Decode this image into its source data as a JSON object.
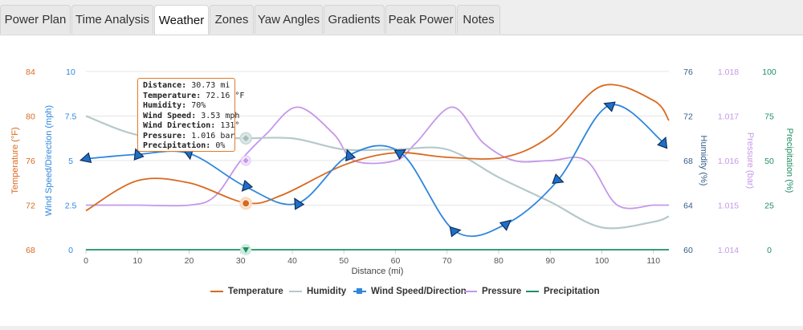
{
  "tabs": [
    {
      "label": "Power Plan"
    },
    {
      "label": "Time Analysis"
    },
    {
      "label": "Weather",
      "active": true
    },
    {
      "label": "Zones"
    },
    {
      "label": "Yaw Angles"
    },
    {
      "label": "Gradients"
    },
    {
      "label": "Peak Power"
    },
    {
      "label": "Notes"
    }
  ],
  "tooltip": {
    "lines": [
      {
        "key": "Distance:",
        "value": "30.73 mi"
      },
      {
        "key": "Temperature:",
        "value": "72.16 °F"
      },
      {
        "key": "Humidity:",
        "value": "70%"
      },
      {
        "key": "Wind Speed:",
        "value": "3.53 mph"
      },
      {
        "key": "Wind Direction:",
        "value": "131°"
      },
      {
        "key": "Pressure:",
        "value": "1.016 bar"
      },
      {
        "key": "Precipitation:",
        "value": "0%"
      }
    ]
  },
  "chart_data": {
    "type": "line",
    "xlabel": "Distance (mi)",
    "xlim": [
      0,
      113
    ],
    "x_ticks": [
      "0",
      "10",
      "20",
      "30",
      "40",
      "50",
      "60",
      "70",
      "80",
      "90",
      "100",
      "110"
    ],
    "axes": [
      {
        "id": "temp",
        "label": "Temperature (°F)",
        "side": "left",
        "color": "#d9691e",
        "range": [
          68,
          84
        ],
        "ticks": [
          "68",
          "72",
          "76",
          "80",
          "84"
        ]
      },
      {
        "id": "wind",
        "label": "Wind Speed/Direction (mph)",
        "side": "left",
        "color": "#2e86de",
        "range": [
          0,
          10
        ],
        "ticks": [
          "0",
          "2.5",
          "5",
          "7.5",
          "10"
        ]
      },
      {
        "id": "hum",
        "label": "Humidity (%)",
        "side": "right",
        "color": "#355c8a",
        "range": [
          60,
          76
        ],
        "ticks": [
          "60",
          "64",
          "68",
          "72",
          "76"
        ]
      },
      {
        "id": "pres",
        "label": "Pressure (bar)",
        "side": "right",
        "color": "#c597e8",
        "range": [
          1.014,
          1.018
        ],
        "ticks": [
          "1.014",
          "1.015",
          "1.016",
          "1.017",
          "1.018"
        ]
      },
      {
        "id": "prec",
        "label": "Precipitation (%)",
        "side": "right",
        "color": "#1e8f63",
        "range": [
          0,
          100
        ],
        "ticks": [
          "0",
          "25",
          "50",
          "75",
          "100"
        ]
      }
    ],
    "series": [
      {
        "name": "Temperature",
        "axis": "temp",
        "color": "#d9691e",
        "x": [
          0,
          10,
          20,
          31,
          38,
          50,
          60,
          70,
          81,
          90,
          100,
          110,
          113
        ],
        "y": [
          71.5,
          74.2,
          74.0,
          72.2,
          72.9,
          75.6,
          76.7,
          76.3,
          76.3,
          78.2,
          82.7,
          81.4,
          79.6
        ]
      },
      {
        "name": "Humidity",
        "axis": "hum",
        "color": "#b5c9c9",
        "x": [
          0,
          10,
          20,
          30,
          40,
          50,
          60,
          70,
          80,
          90,
          100,
          110,
          113
        ],
        "y": [
          72.0,
          70.3,
          70.2,
          70.0,
          70.0,
          69.0,
          69.0,
          69.0,
          66.5,
          64.3,
          62.0,
          62.5,
          63.0
        ],
        "markers": [
          {
            "x": 31,
            "y": 70.0
          }
        ]
      },
      {
        "name": "Wind Speed/Direction",
        "axis": "wind",
        "color": "#2e86de",
        "x": [
          0,
          10,
          20,
          31,
          41,
          51,
          61,
          71.5,
          81.5,
          91.5,
          101.5,
          112
        ],
        "y": [
          5.1,
          5.35,
          5.4,
          3.53,
          2.6,
          5.3,
          5.45,
          1.05,
          1.45,
          3.9,
          8.1,
          6.0
        ],
        "dirs": [
          165,
          250,
          80,
          131,
          240,
          250,
          330,
          350,
          320,
          20,
          200,
          290
        ]
      },
      {
        "name": "Pressure",
        "axis": "pres",
        "color": "#c597e8",
        "x": [
          0,
          10,
          20,
          25,
          30,
          35,
          41,
          48,
          52,
          60,
          64,
          71,
          77,
          83,
          90,
          97,
          103,
          110,
          113
        ],
        "y": [
          1.015,
          1.015,
          1.015,
          1.0152,
          1.016,
          1.0166,
          1.0172,
          1.0166,
          1.016,
          1.016,
          1.0164,
          1.0172,
          1.0164,
          1.016,
          1.016,
          1.016,
          1.015,
          1.015,
          1.015
        ]
      },
      {
        "name": "Precipitation",
        "axis": "prec",
        "color": "#1e8f63",
        "x": [
          0,
          113
        ],
        "y": [
          0,
          0
        ],
        "markers": [
          {
            "x": 31,
            "y": 0
          }
        ]
      }
    ],
    "hover_marker": {
      "series": "Temperature",
      "x": 31,
      "y": 72.16
    }
  }
}
